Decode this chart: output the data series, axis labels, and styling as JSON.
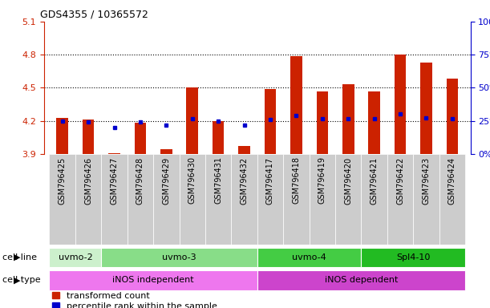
{
  "title": "GDS4355 / 10365572",
  "samples": [
    "GSM796425",
    "GSM796426",
    "GSM796427",
    "GSM796428",
    "GSM796429",
    "GSM796430",
    "GSM796431",
    "GSM796432",
    "GSM796417",
    "GSM796418",
    "GSM796419",
    "GSM796420",
    "GSM796421",
    "GSM796422",
    "GSM796423",
    "GSM796424"
  ],
  "red_values": [
    4.23,
    4.21,
    3.91,
    4.18,
    3.94,
    4.5,
    4.2,
    3.97,
    4.49,
    4.79,
    4.47,
    4.53,
    4.47,
    4.8,
    4.73,
    4.58
  ],
  "blue_values": [
    4.2,
    4.19,
    4.14,
    4.19,
    4.16,
    4.22,
    4.2,
    4.16,
    4.21,
    4.25,
    4.22,
    4.22,
    4.22,
    4.26,
    4.23,
    4.22
  ],
  "ylim": [
    3.9,
    5.1
  ],
  "yticks_left": [
    3.9,
    4.2,
    4.5,
    4.8,
    5.1
  ],
  "yticks_right": [
    0,
    25,
    50,
    75,
    100
  ],
  "cell_line_groups": [
    {
      "label": "uvmo-2",
      "start": 0,
      "end": 1,
      "color": "#ccf0cc"
    },
    {
      "label": "uvmo-3",
      "start": 2,
      "end": 7,
      "color": "#88dd88"
    },
    {
      "label": "uvmo-4",
      "start": 8,
      "end": 11,
      "color": "#44cc44"
    },
    {
      "label": "Spl4-10",
      "start": 12,
      "end": 15,
      "color": "#22bb22"
    }
  ],
  "cell_type_groups": [
    {
      "label": "iNOS independent",
      "start": 0,
      "end": 7,
      "color": "#ee77ee"
    },
    {
      "label": "iNOS dependent",
      "start": 8,
      "end": 15,
      "color": "#cc44cc"
    }
  ],
  "bar_color": "#cc2200",
  "blue_color": "#0000cc",
  "bar_width": 0.45,
  "left_axis_color": "#cc2200",
  "right_axis_color": "#0000cc",
  "legend_red_label": "transformed count",
  "legend_blue_label": "percentile rank within the sample",
  "background_color": "#ffffff",
  "title_fontsize": 9,
  "tick_label_fontsize": 7,
  "band_label_fontsize": 8,
  "xticklabel_bg": "#cccccc"
}
